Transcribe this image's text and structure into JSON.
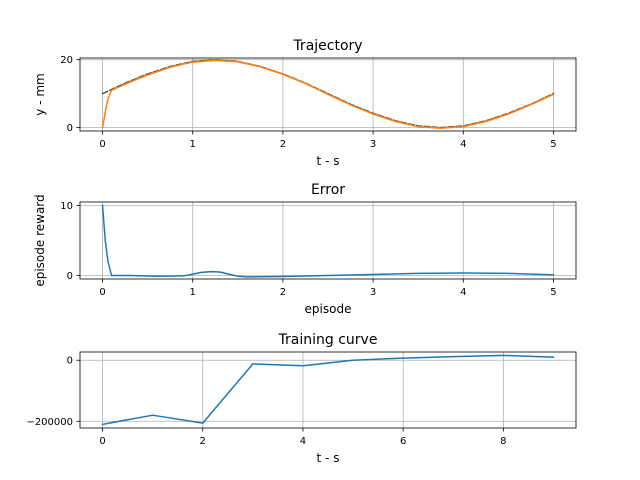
{
  "chart_data": [
    {
      "type": "line",
      "title": "Trajectory",
      "xlabel": "t - s",
      "ylabel": "y - mm",
      "xlim": [
        -0.25,
        5.25
      ],
      "ylim": [
        -1.0,
        20.5
      ],
      "xticks": [
        0,
        1,
        2,
        3,
        4,
        5
      ],
      "yticks": [
        0,
        20
      ],
      "grid": true,
      "series": [
        {
          "color": "#555555",
          "dash": true,
          "x": [
            0,
            0.25,
            0.5,
            0.75,
            1.0,
            1.25,
            1.5,
            1.75,
            2.0,
            2.25,
            2.5,
            2.75,
            3.0,
            3.25,
            3.5,
            3.75,
            4.0,
            4.25,
            4.5,
            4.75,
            5.0
          ],
          "y": [
            10.0,
            13.1,
            15.8,
            18.0,
            19.5,
            20.0,
            19.5,
            18.0,
            15.8,
            13.1,
            10.0,
            6.9,
            4.2,
            2.0,
            0.5,
            0.0,
            0.5,
            2.0,
            4.2,
            6.9,
            10.0
          ]
        },
        {
          "color": "#ff7f0e",
          "dash": false,
          "x": [
            0,
            0.03,
            0.06,
            0.1,
            0.25,
            0.5,
            0.75,
            1.0,
            1.25,
            1.5,
            1.75,
            2.0,
            2.25,
            2.5,
            2.75,
            3.0,
            3.25,
            3.5,
            3.75,
            4.0,
            4.25,
            4.5,
            4.75,
            5.0
          ],
          "y": [
            0.0,
            4.5,
            8.5,
            11.0,
            12.8,
            15.5,
            17.8,
            19.3,
            19.8,
            19.4,
            17.9,
            15.7,
            13.0,
            9.8,
            6.7,
            4.0,
            1.8,
            0.3,
            -0.2,
            0.3,
            1.8,
            4.0,
            6.8,
            9.8
          ]
        }
      ]
    },
    {
      "type": "line",
      "title": "Error",
      "xlabel": "episode",
      "ylabel": "episode reward",
      "xlim": [
        -0.25,
        5.25
      ],
      "ylim": [
        -0.5,
        10.5
      ],
      "xticks": [
        0,
        1,
        2,
        3,
        4,
        5
      ],
      "yticks": [
        0,
        10
      ],
      "grid": true,
      "series": [
        {
          "color": "#1f77b4",
          "dash": false,
          "x": [
            0,
            0.03,
            0.06,
            0.1,
            0.3,
            0.6,
            0.9,
            1.0,
            1.1,
            1.2,
            1.3,
            1.4,
            1.5,
            1.6,
            2.0,
            2.5,
            3.0,
            3.5,
            4.0,
            4.5,
            5.0
          ],
          "y": [
            10.0,
            5.0,
            2.0,
            0.0,
            0.0,
            -0.1,
            -0.05,
            0.2,
            0.45,
            0.55,
            0.5,
            0.2,
            -0.1,
            -0.2,
            -0.15,
            0.0,
            0.15,
            0.3,
            0.35,
            0.3,
            0.1
          ]
        }
      ]
    },
    {
      "type": "line",
      "title": "Training curve",
      "xlabel": "t - s",
      "ylabel": "",
      "xlim": [
        -0.45,
        9.45
      ],
      "ylim": [
        -222000,
        27000
      ],
      "xticks": [
        0,
        2,
        4,
        6,
        8
      ],
      "yticks": [
        -200000,
        0
      ],
      "ytick_labels": [
        "−200000",
        "0"
      ],
      "grid": true,
      "series": [
        {
          "color": "#1f77b4",
          "dash": false,
          "x": [
            0,
            1,
            2,
            3,
            4,
            5,
            6,
            7,
            8,
            9
          ],
          "y": [
            -210000,
            -180000,
            -206000,
            -12000,
            -18000,
            0,
            7000,
            12000,
            16000,
            10000
          ]
        }
      ]
    }
  ]
}
